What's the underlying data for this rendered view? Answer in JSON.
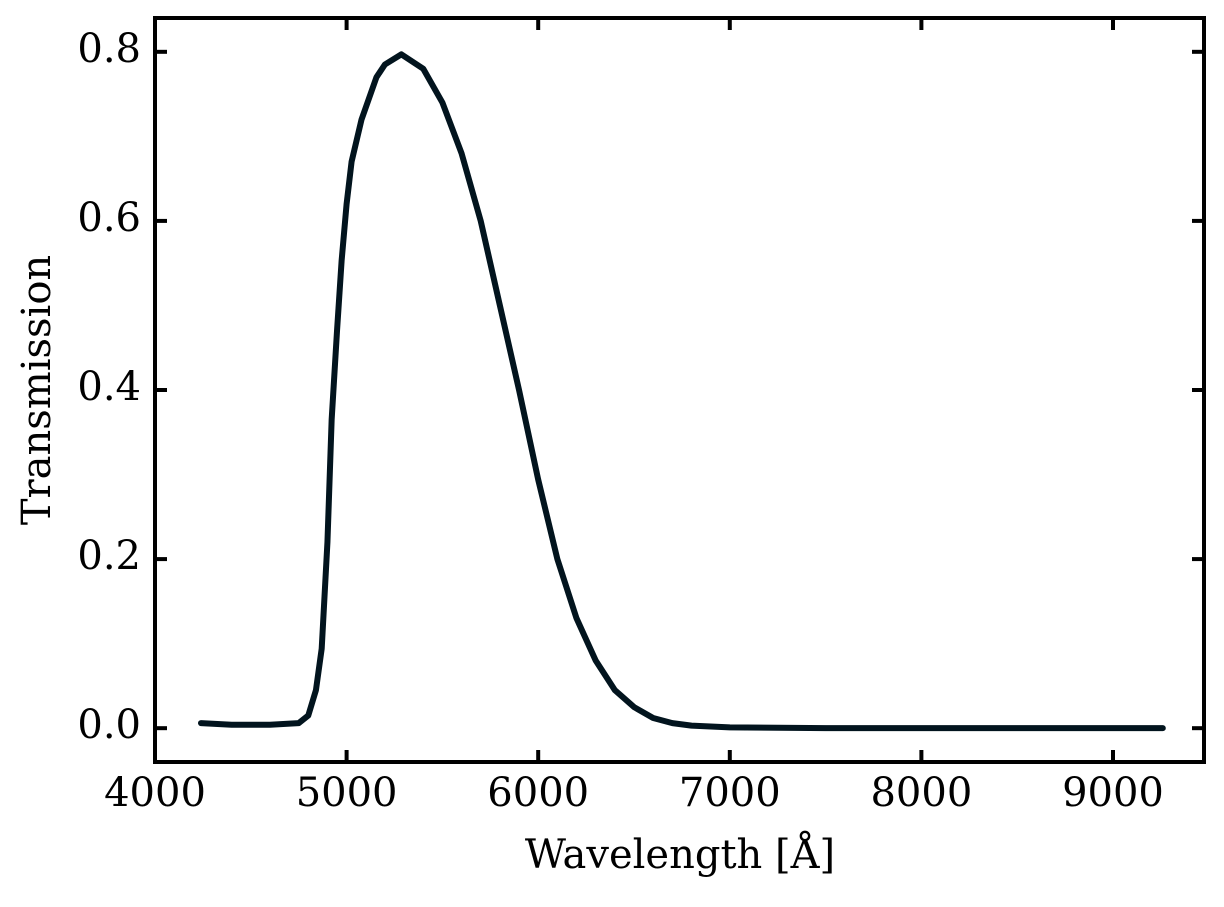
{
  "chart_data": {
    "type": "line",
    "x_label": "Wavelength [Å]",
    "y_label": "Transmission",
    "x": [
      4240,
      4400,
      4600,
      4750,
      4800,
      4840,
      4870,
      4900,
      4922,
      4950,
      4974,
      5000,
      5026,
      5078,
      5156,
      5200,
      5286,
      5400,
      5500,
      5600,
      5700,
      5800,
      5900,
      6000,
      6100,
      6200,
      6300,
      6400,
      6500,
      6600,
      6700,
      6800,
      7000,
      7500,
      8000,
      8500,
      9000,
      9260
    ],
    "series": [
      {
        "name": "Transmission",
        "color": "#02141e",
        "values": [
          0.006,
          0.004,
          0.004,
          0.006,
          0.015,
          0.045,
          0.094,
          0.22,
          0.365,
          0.47,
          0.553,
          0.62,
          0.67,
          0.72,
          0.77,
          0.785,
          0.797,
          0.78,
          0.74,
          0.68,
          0.6,
          0.5,
          0.4,
          0.294,
          0.2,
          0.13,
          0.08,
          0.045,
          0.025,
          0.012,
          0.006,
          0.003,
          0.001,
          0,
          0,
          0,
          0,
          0
        ]
      }
    ],
    "xlim": [
      4000,
      9475
    ],
    "ylim": [
      -0.04,
      0.84
    ],
    "xticks": [
      4000,
      5000,
      6000,
      7000,
      8000,
      9000
    ],
    "yticks": [
      {
        "value": 0,
        "label": "0.0"
      },
      0.2,
      0.4,
      0.6,
      0.8
    ],
    "grid": false
  }
}
